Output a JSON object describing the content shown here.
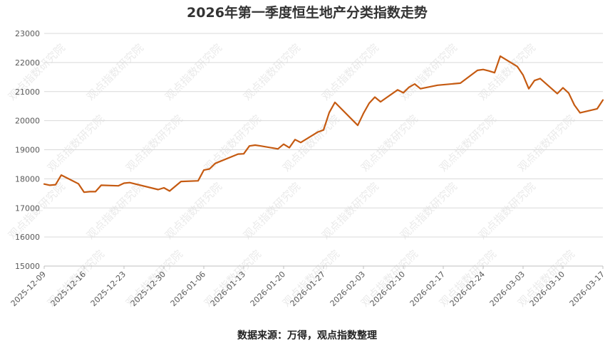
{
  "chart_data": {
    "type": "line",
    "title": "2026年第一季度恒生地产分类指数走势",
    "xlabel": "",
    "ylabel": "",
    "ylim": [
      15000,
      23000
    ],
    "yticks": [
      15000,
      16000,
      17000,
      18000,
      19000,
      20000,
      21000,
      22000,
      23000
    ],
    "xlim": [
      "2025-12-09",
      "2026-03-17"
    ],
    "xticks": [
      "2025-12-09",
      "2025-12-16",
      "2025-12-23",
      "2025-12-30",
      "2026-01-06",
      "2026-01-13",
      "2026-01-20",
      "2026-01-27",
      "2026-02-03",
      "2026-02-10",
      "2026-02-17",
      "2026-02-24",
      "2026-03-03",
      "2026-03-10",
      "2026-03-17"
    ],
    "grid": "horizontal",
    "legend": "none",
    "line_color": "#c55a11",
    "series": [
      {
        "x": [
          "2025-12-09",
          "2025-12-10",
          "2025-12-11",
          "2025-12-12",
          "2025-12-15",
          "2025-12-16",
          "2025-12-17",
          "2025-12-18",
          "2025-12-19",
          "2025-12-22",
          "2025-12-23",
          "2025-12-24",
          "2025-12-29",
          "2025-12-30",
          "2025-12-31",
          "2026-01-02",
          "2026-01-05",
          "2026-01-06",
          "2026-01-07",
          "2026-01-08",
          "2026-01-12",
          "2026-01-13",
          "2026-01-14",
          "2026-01-15",
          "2026-01-16",
          "2026-01-19",
          "2026-01-20",
          "2026-01-21",
          "2026-01-22",
          "2026-01-23",
          "2026-01-26",
          "2026-01-27",
          "2026-01-28",
          "2026-01-29",
          "2026-02-02",
          "2026-02-03",
          "2026-02-04",
          "2026-02-05",
          "2026-02-06",
          "2026-02-09",
          "2026-02-10",
          "2026-02-11",
          "2026-02-12",
          "2026-02-13",
          "2026-02-16",
          "2026-02-20",
          "2026-02-23",
          "2026-02-24",
          "2026-02-25",
          "2026-02-26",
          "2026-02-27",
          "2026-03-02",
          "2026-03-03",
          "2026-03-04",
          "2026-03-05",
          "2026-03-06",
          "2026-03-09",
          "2026-03-10",
          "2026-03-11",
          "2026-03-12",
          "2026-03-13",
          "2026-03-16",
          "2026-03-17"
        ],
        "values": [
          17820,
          17780,
          17800,
          18130,
          17830,
          17540,
          17560,
          17560,
          17780,
          17760,
          17850,
          17870,
          17630,
          17690,
          17580,
          17910,
          17930,
          18300,
          18340,
          18530,
          18850,
          18860,
          19130,
          19160,
          19130,
          19030,
          19190,
          19070,
          19350,
          19250,
          19610,
          19680,
          20280,
          20630,
          19840,
          20250,
          20600,
          20810,
          20650,
          21060,
          20960,
          21150,
          21260,
          21100,
          21220,
          21290,
          21730,
          21760,
          21710,
          21650,
          22220,
          21860,
          21570,
          21100,
          21380,
          21450,
          20930,
          21130,
          20950,
          20540,
          20270,
          20410,
          20710
        ]
      }
    ],
    "watermark": "观点指数研究院",
    "source": "数据来源：万得，观点指数整理"
  }
}
